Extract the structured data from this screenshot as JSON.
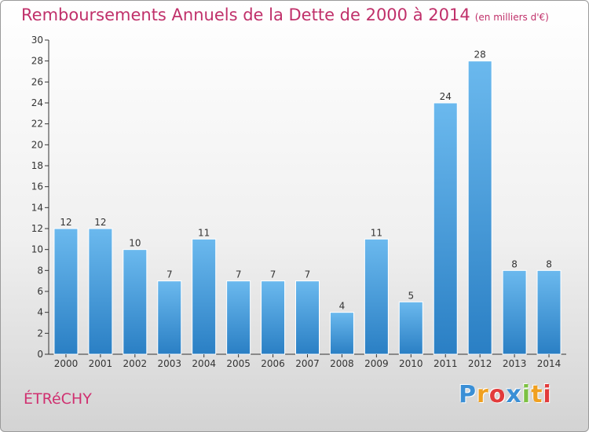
{
  "header": {
    "title": "Remboursements Annuels de la Dette de 2000 à 2014",
    "unit": "(en milliers d'€)"
  },
  "commune": "ÉTRéCHY",
  "logo": {
    "text": "Proxiti",
    "letters": [
      {
        "char": "P",
        "color": "#3a8fd6"
      },
      {
        "char": "r",
        "color": "#f0a020"
      },
      {
        "char": "o",
        "color": "#e23b3b"
      },
      {
        "char": "x",
        "color": "#3a8fd6"
      },
      {
        "char": "i",
        "color": "#7cc142"
      },
      {
        "char": "t",
        "color": "#f0a020"
      },
      {
        "char": "i",
        "color": "#e23b3b"
      }
    ]
  },
  "colors": {
    "bar_light": "#6bb9ee",
    "bar_dark": "#2a7fc4",
    "title": "#c0306a",
    "axis": "#333333"
  },
  "chart_data": {
    "type": "bar",
    "title": "Remboursements Annuels de la Dette de 2000 à 2014",
    "subtitle": "(en milliers d'€)",
    "xlabel": "",
    "ylabel": "",
    "categories": [
      "2000",
      "2001",
      "2002",
      "2003",
      "2004",
      "2005",
      "2006",
      "2007",
      "2008",
      "2009",
      "2010",
      "2011",
      "2012",
      "2013",
      "2014"
    ],
    "values": [
      12,
      12,
      10,
      7,
      11,
      7,
      7,
      7,
      4,
      11,
      5,
      24,
      28,
      8,
      8
    ],
    "ylim": [
      0,
      30
    ],
    "yticks": [
      0,
      2,
      4,
      6,
      8,
      10,
      12,
      14,
      16,
      18,
      20,
      22,
      24,
      26,
      28,
      30
    ],
    "grid": false,
    "legend": "none"
  }
}
